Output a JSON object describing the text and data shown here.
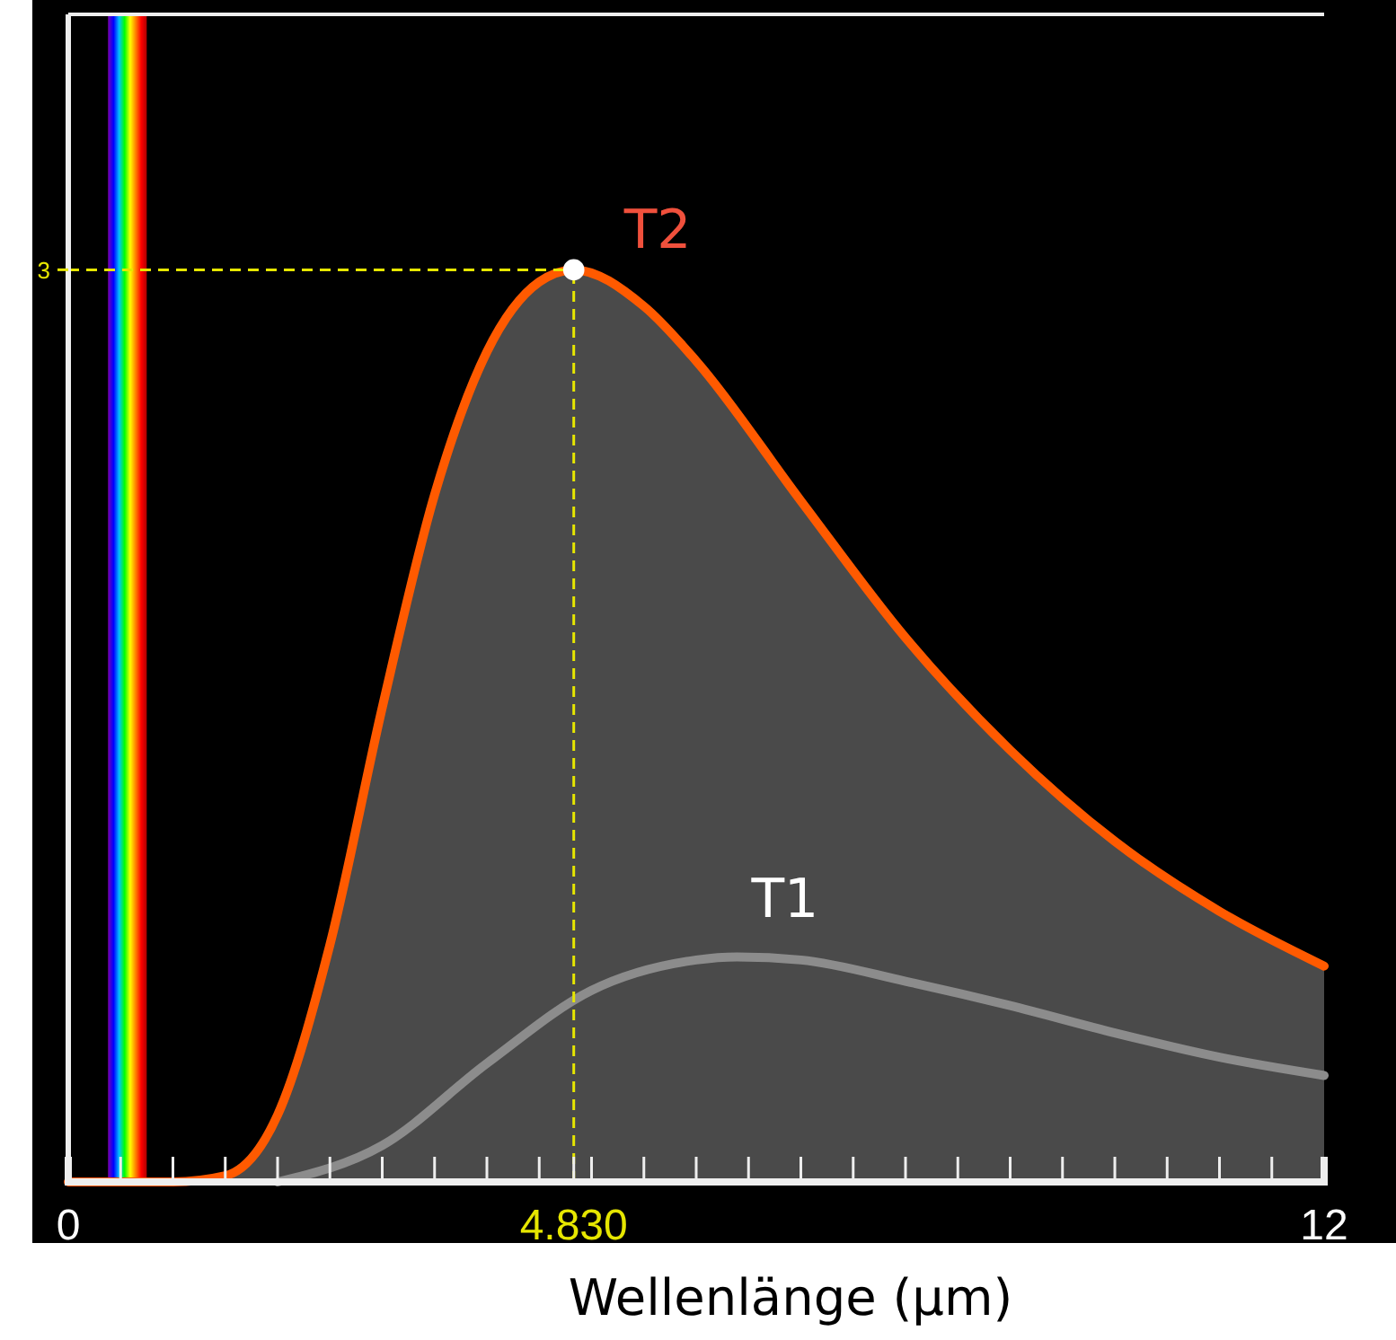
{
  "chart_data": {
    "type": "area",
    "xlabel": "Wellenlänge (µm)",
    "xlim": [
      0,
      12
    ],
    "ylim": [
      0,
      3.84
    ],
    "xticks": [
      0,
      {
        "value": 0.5,
        "label": null
      },
      {
        "value": 1,
        "label": null
      },
      {
        "value": 1.5,
        "label": null
      },
      {
        "value": 2,
        "label": null
      },
      {
        "value": 2.5,
        "label": null
      },
      {
        "value": 3,
        "label": null
      },
      {
        "value": 3.5,
        "label": null
      },
      {
        "value": 4,
        "label": null
      },
      {
        "value": 4.5,
        "label": null
      },
      {
        "value": 4.83,
        "label": "4.830"
      },
      {
        "value": 5,
        "label": null
      },
      {
        "value": 5.5,
        "label": null
      },
      {
        "value": 6,
        "label": null
      },
      {
        "value": 6.5,
        "label": null
      },
      {
        "value": 7,
        "label": null
      },
      {
        "value": 7.5,
        "label": null
      },
      {
        "value": 8,
        "label": null
      },
      {
        "value": 8.5,
        "label": null
      },
      {
        "value": 9,
        "label": null
      },
      {
        "value": 9.5,
        "label": null
      },
      {
        "value": 10,
        "label": null
      },
      {
        "value": 10.5,
        "label": null
      },
      {
        "value": 11,
        "label": null
      },
      {
        "value": 11.5,
        "label": null
      },
      12
    ],
    "yticks": [
      3
    ],
    "grid": false,
    "series": [
      {
        "name": "T2",
        "color": "#ff5a00",
        "x": [
          0,
          1,
          1.5,
          2,
          2.5,
          3,
          3.5,
          4,
          4.5,
          4.83,
          5.5,
          6,
          7,
          8,
          9,
          10,
          11,
          12
        ],
        "values": [
          0,
          0,
          0.02,
          0.22,
          0.78,
          1.56,
          2.26,
          2.73,
          2.96,
          3,
          2.88,
          2.7,
          2.24,
          1.79,
          1.42,
          1.12,
          0.89,
          0.71
        ]
      },
      {
        "name": "T1",
        "type": "line",
        "color": "#8c8c8c",
        "x": [
          2,
          3,
          4,
          5,
          6,
          6.39,
          7,
          8,
          9,
          10,
          11,
          12
        ],
        "values": [
          0,
          0.12,
          0.39,
          0.63,
          0.73,
          0.74,
          0.73,
          0.66,
          0.58,
          0.49,
          0.41,
          0.35
        ]
      },
      {
        "type": "scatter",
        "color": "#ffffff",
        "marker": "circle",
        "x": [
          4.83
        ],
        "values": [
          3
        ]
      }
    ],
    "ref_lines": [
      {
        "axis": "x",
        "value": 4.83,
        "color": "#e6e600",
        "line_style": "dashed"
      },
      {
        "axis": "y",
        "value": 3,
        "color": "#e6e600",
        "line_style": "dashed"
      }
    ],
    "bands": [
      {
        "axis": "x",
        "from": 0.38,
        "to": 0.75
      }
    ]
  }
}
